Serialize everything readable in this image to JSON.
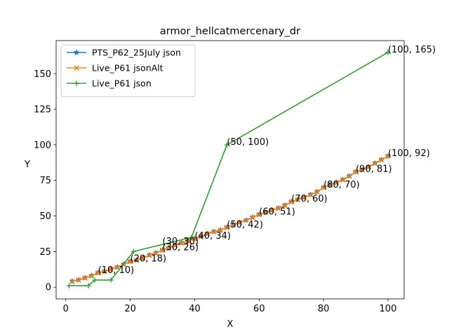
{
  "chart_data": {
    "type": "line",
    "title": "armor_hellcatmercenary_dr",
    "xlabel": "X",
    "ylabel": "Y",
    "xlim": [
      -3,
      105
    ],
    "ylim": [
      -8.25,
      173.25
    ],
    "xticks": [
      0,
      20,
      40,
      60,
      80,
      100
    ],
    "yticks": [
      0,
      25,
      50,
      75,
      100,
      125,
      150
    ],
    "grid": false,
    "legend_position": "upper-left",
    "series": [
      {
        "name": "PTS_P62_25July json",
        "color": "#1f77b4",
        "marker": "star",
        "x": [
          2,
          4,
          6,
          8,
          10,
          12,
          14,
          16,
          18,
          20,
          22,
          24,
          26,
          28,
          30,
          32,
          34,
          36,
          38,
          40,
          42,
          44,
          46,
          48,
          50,
          52,
          54,
          56,
          58,
          60,
          62,
          64,
          66,
          68,
          70,
          72,
          74,
          76,
          78,
          80,
          82,
          84,
          86,
          88,
          90,
          92,
          94,
          96,
          98,
          100
        ],
        "y": [
          4,
          5,
          6.5,
          8,
          10,
          11,
          12.5,
          14,
          16,
          18,
          19,
          20.5,
          22.5,
          24,
          26,
          27.5,
          29.5,
          31,
          32.5,
          34,
          35.5,
          37.5,
          39,
          40,
          42,
          44,
          45.5,
          47,
          49,
          51,
          52.5,
          54,
          55.5,
          57.5,
          60,
          61.5,
          63,
          65,
          67,
          70,
          72,
          73.5,
          75.5,
          78,
          81,
          82.5,
          84.5,
          87,
          89.5,
          92
        ]
      },
      {
        "name": "Live_P61 jsonAlt",
        "color": "#ff7f0e",
        "marker": "x",
        "x": [
          2,
          4,
          6,
          8,
          10,
          12,
          14,
          16,
          18,
          20,
          22,
          24,
          26,
          28,
          30,
          32,
          34,
          36,
          38,
          40,
          42,
          44,
          46,
          48,
          50,
          52,
          54,
          56,
          58,
          60,
          62,
          64,
          66,
          68,
          70,
          72,
          74,
          76,
          78,
          80,
          82,
          84,
          86,
          88,
          90,
          92,
          94,
          96,
          98,
          100
        ],
        "y": [
          4,
          5,
          6.5,
          8,
          10,
          11,
          12.5,
          14,
          16,
          18,
          19,
          20.5,
          22.5,
          24,
          26,
          27.5,
          29.5,
          31,
          32.5,
          34,
          35.5,
          37.5,
          39,
          40,
          42,
          44,
          45.5,
          47,
          49,
          51,
          52.5,
          54,
          55.5,
          57.5,
          60,
          61.5,
          63,
          65,
          67,
          70,
          72,
          73.5,
          75.5,
          78,
          81,
          82.5,
          84.5,
          87,
          89.5,
          92
        ]
      },
      {
        "name": "Live_P61 json",
        "color": "#2ca02c",
        "marker": "plus",
        "x": [
          1,
          7,
          9,
          14,
          21,
          39,
          50,
          100
        ],
        "y": [
          1,
          1,
          5,
          5,
          25,
          35,
          100,
          165
        ]
      }
    ],
    "annotations": [
      {
        "text": "(10, 10)",
        "x": 10,
        "y": 10
      },
      {
        "text": "(20, 18)",
        "x": 20,
        "y": 18
      },
      {
        "text": "(30, 26)",
        "x": 30,
        "y": 26
      },
      {
        "text": "(30, 30)",
        "x": 30,
        "y": 30
      },
      {
        "text": "(40, 34)",
        "x": 40,
        "y": 34
      },
      {
        "text": "(50, 42)",
        "x": 50,
        "y": 42
      },
      {
        "text": "(50, 100)",
        "x": 50,
        "y": 100
      },
      {
        "text": "(60, 51)",
        "x": 60,
        "y": 51
      },
      {
        "text": "(70, 60)",
        "x": 70,
        "y": 60
      },
      {
        "text": "(80, 70)",
        "x": 80,
        "y": 70
      },
      {
        "text": "(90, 81)",
        "x": 90,
        "y": 81
      },
      {
        "text": "(100, 92)",
        "x": 100,
        "y": 92
      },
      {
        "text": "(100, 165)",
        "x": 100,
        "y": 165
      }
    ]
  }
}
